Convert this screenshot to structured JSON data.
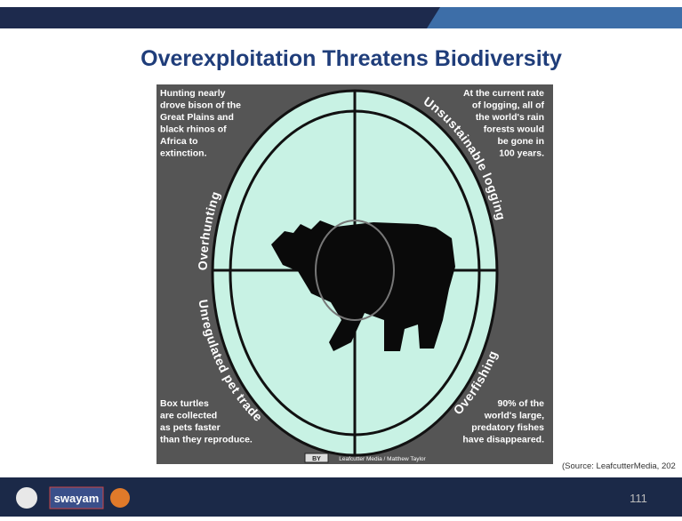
{
  "slide": {
    "title": "Overexploitation Threatens Biodiversity",
    "panel": {
      "top_left": [
        "Hunting nearly",
        "drove bison of the",
        "Great Plains and",
        "black rhinos of",
        "Africa to",
        "extinction."
      ],
      "top_right": [
        "At the current rate",
        "of logging, all of",
        "the world's rain",
        "forests would",
        "be gone in",
        "100 years."
      ],
      "bottom_left": [
        "Box turtles",
        "are collected",
        "as pets faster",
        "than they reproduce."
      ],
      "bottom_right": [
        "90% of the",
        "world's large,",
        "predatory fishes",
        "have disappeared."
      ],
      "arc_top_left": "Overhunting",
      "arc_top_right": "Unsustainable logging",
      "arc_bottom_left": "Unregulated pet trade",
      "arc_bottom_right": "Overfishing",
      "license": "BY",
      "credit": "Leafcutter Media / Matthew Taylor"
    },
    "source": "(Source: LeafcutterMedia, 202",
    "footer": {
      "logo_text": "swayam",
      "page_number": "111"
    }
  }
}
